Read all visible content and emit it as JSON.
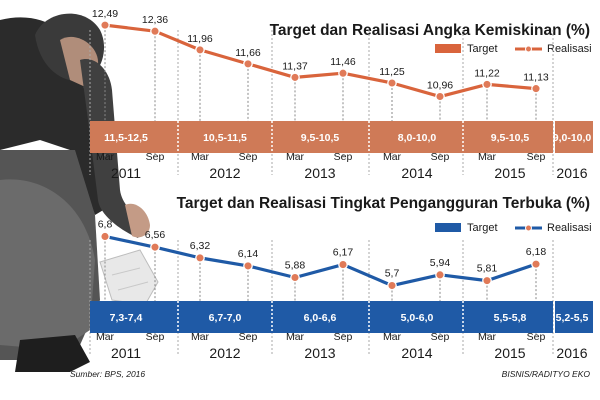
{
  "chart_data": [
    {
      "type": "line",
      "title": "Target dan Realisasi Angka Kemiskinan (%)",
      "legend": [
        "Target",
        "Realisasi"
      ],
      "legend_position": "top-right",
      "colors": {
        "target": "#d9643c",
        "line": "#d9643c",
        "marker": "#e07a58",
        "band": "#cf7a57"
      },
      "x": [
        "Mar 2011",
        "Sep 2011",
        "Mar 2012",
        "Sep 2012",
        "Mar 2013",
        "Sep 2013",
        "Mar 2014",
        "Sep 2014",
        "Mar 2015",
        "Sep 2015"
      ],
      "series": [
        {
          "name": "Realisasi",
          "values": [
            12.49,
            12.36,
            11.96,
            11.66,
            11.37,
            11.46,
            11.25,
            10.96,
            11.22,
            11.13
          ]
        }
      ],
      "value_labels": [
        "12,49",
        "12,36",
        "11,96",
        "11,66",
        "11,37",
        "11,46",
        "11,25",
        "10,96",
        "11,22",
        "11,13"
      ],
      "targets": [
        {
          "year": "2011",
          "range": "11,5-12,5"
        },
        {
          "year": "2012",
          "range": "10,5-11,5"
        },
        {
          "year": "2013",
          "range": "9,5-10,5"
        },
        {
          "year": "2014",
          "range": "8,0-10,0"
        },
        {
          "year": "2015",
          "range": "9,5-10,5"
        },
        {
          "year": "2016",
          "range": "9,0-10,0"
        }
      ]
    },
    {
      "type": "line",
      "title": "Target dan Realisasi Tingkat Pengangguran Terbuka (%)",
      "legend": [
        "Target",
        "Realisasi"
      ],
      "legend_position": "top-right",
      "colors": {
        "target": "#1f5aa6",
        "line": "#1f5aa6",
        "marker": "#e07a58",
        "band": "#1f5aa6"
      },
      "x": [
        "Mar 2011",
        "Sep 2011",
        "Mar 2012",
        "Sep 2012",
        "Mar 2013",
        "Sep 2013",
        "Mar 2014",
        "Sep 2014",
        "Mar 2015",
        "Sep 2015"
      ],
      "series": [
        {
          "name": "Realisasi",
          "values": [
            6.8,
            6.56,
            6.32,
            6.14,
            5.88,
            6.17,
            5.7,
            5.94,
            5.81,
            6.18
          ]
        }
      ],
      "value_labels": [
        "6,8",
        "6,56",
        "6,32",
        "6,14",
        "5,88",
        "6,17",
        "5,7",
        "5,94",
        "5,81",
        "6,18"
      ],
      "targets": [
        {
          "year": "2011",
          "range": "7,3-7,4"
        },
        {
          "year": "2012",
          "range": "6,7-7,0"
        },
        {
          "year": "2013",
          "range": "6,0-6,6"
        },
        {
          "year": "2014",
          "range": "5,0-6,0"
        },
        {
          "year": "2015",
          "range": "5,5-5,8"
        },
        {
          "year": "2016",
          "range": "5,2-5,5"
        }
      ]
    }
  ],
  "axis": {
    "mar": "Mar",
    "sep": "Sep",
    "years": [
      "2011",
      "2012",
      "2013",
      "2014",
      "2015",
      "2016"
    ]
  },
  "footer": {
    "source": "Sumber: BPS, 2016",
    "credit": "BISNIS/RADITYO EKO"
  }
}
